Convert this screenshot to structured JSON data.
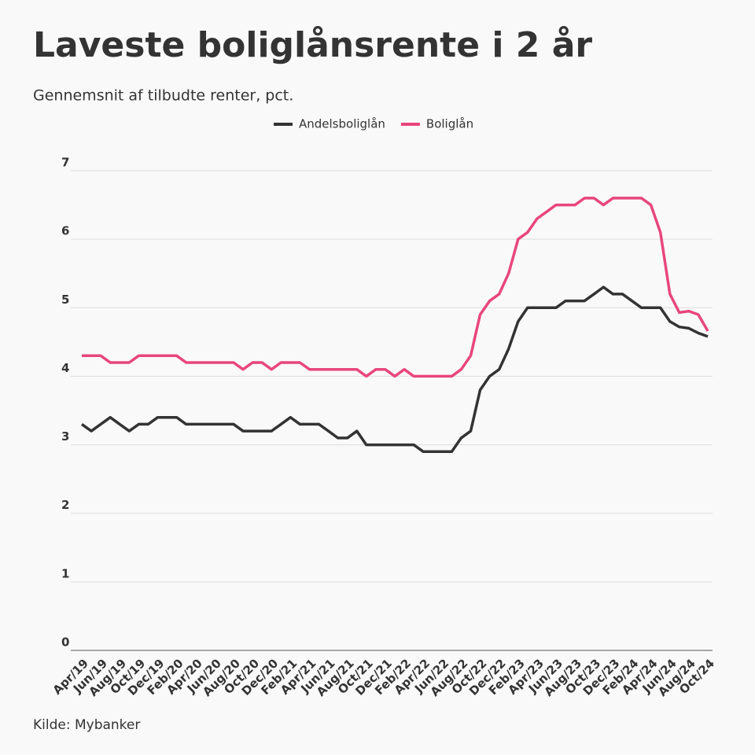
{
  "chart_data": {
    "type": "line",
    "title": "Laveste boliglånsrente i 2 år",
    "subtitle": "Gennemsnit af tilbudte renter, pct.",
    "source": "Kilde: Mybanker",
    "categories": [
      "Apr/19",
      null,
      "Jun/19",
      null,
      "Aug/19",
      null,
      "Oct/19",
      null,
      "Dec/19",
      null,
      "Feb/20",
      null,
      "Apr/20",
      null,
      "Jun/20",
      null,
      "Aug/20",
      null,
      "Oct/20",
      null,
      "Dec/20",
      null,
      "Feb/21",
      null,
      "Apr/21",
      null,
      "Jun/21",
      null,
      "Aug/21",
      null,
      "Oct/21",
      null,
      "Dec/21",
      null,
      "Feb/22",
      null,
      "Apr/22",
      null,
      "Jun/22",
      null,
      "Aug/22",
      null,
      "Oct/22",
      null,
      "Dec/22",
      null,
      "Feb/23",
      null,
      "Apr/23",
      null,
      "Jun/23",
      null,
      "Aug/23",
      null,
      "Oct/23",
      null,
      "Dec/23",
      null,
      "Feb/24",
      null,
      "Apr/24",
      null,
      "Jun/24",
      null,
      "Aug/24",
      null,
      "Oct/24"
    ],
    "series": [
      {
        "name": "Andelsboliglån",
        "color": "#333333",
        "values": [
          3.3,
          3.2,
          3.3,
          3.4,
          3.3,
          3.2,
          3.3,
          3.3,
          3.4,
          3.4,
          3.4,
          3.3,
          3.3,
          3.3,
          3.3,
          3.3,
          3.3,
          3.2,
          3.2,
          3.2,
          3.2,
          3.3,
          3.4,
          3.3,
          3.3,
          3.3,
          3.2,
          3.1,
          3.1,
          3.2,
          3.0,
          3.0,
          3.0,
          3.0,
          3.0,
          3.0,
          2.9,
          2.9,
          2.9,
          2.9,
          3.1,
          3.2,
          3.8,
          4.0,
          4.1,
          4.4,
          4.8,
          5.0,
          5.0,
          5.0,
          5.0,
          5.1,
          5.1,
          5.1,
          5.2,
          5.3,
          5.2,
          5.2,
          5.1,
          5.0,
          5.0,
          5.0,
          4.8,
          4.72,
          4.7,
          4.63,
          4.58
        ]
      },
      {
        "name": "Boliglån",
        "color": "#e8467c",
        "values": [
          4.3,
          4.3,
          4.3,
          4.2,
          4.2,
          4.2,
          4.3,
          4.3,
          4.3,
          4.3,
          4.3,
          4.2,
          4.2,
          4.2,
          4.2,
          4.2,
          4.2,
          4.1,
          4.2,
          4.2,
          4.1,
          4.2,
          4.2,
          4.2,
          4.1,
          4.1,
          4.1,
          4.1,
          4.1,
          4.1,
          4.0,
          4.1,
          4.1,
          4.0,
          4.1,
          4.0,
          4.0,
          4.0,
          4.0,
          4.0,
          4.1,
          4.3,
          4.9,
          5.1,
          5.2,
          5.5,
          6.0,
          6.1,
          6.3,
          6.4,
          6.5,
          6.5,
          6.5,
          6.6,
          6.6,
          6.5,
          6.6,
          6.6,
          6.6,
          6.6,
          6.5,
          6.1,
          5.2,
          4.93,
          4.95,
          4.9,
          4.66
        ]
      }
    ],
    "ylim": [
      0,
      7
    ],
    "yticks": [
      0,
      1,
      2,
      3,
      4,
      5,
      6,
      7
    ],
    "grid": true,
    "legend": "top"
  }
}
